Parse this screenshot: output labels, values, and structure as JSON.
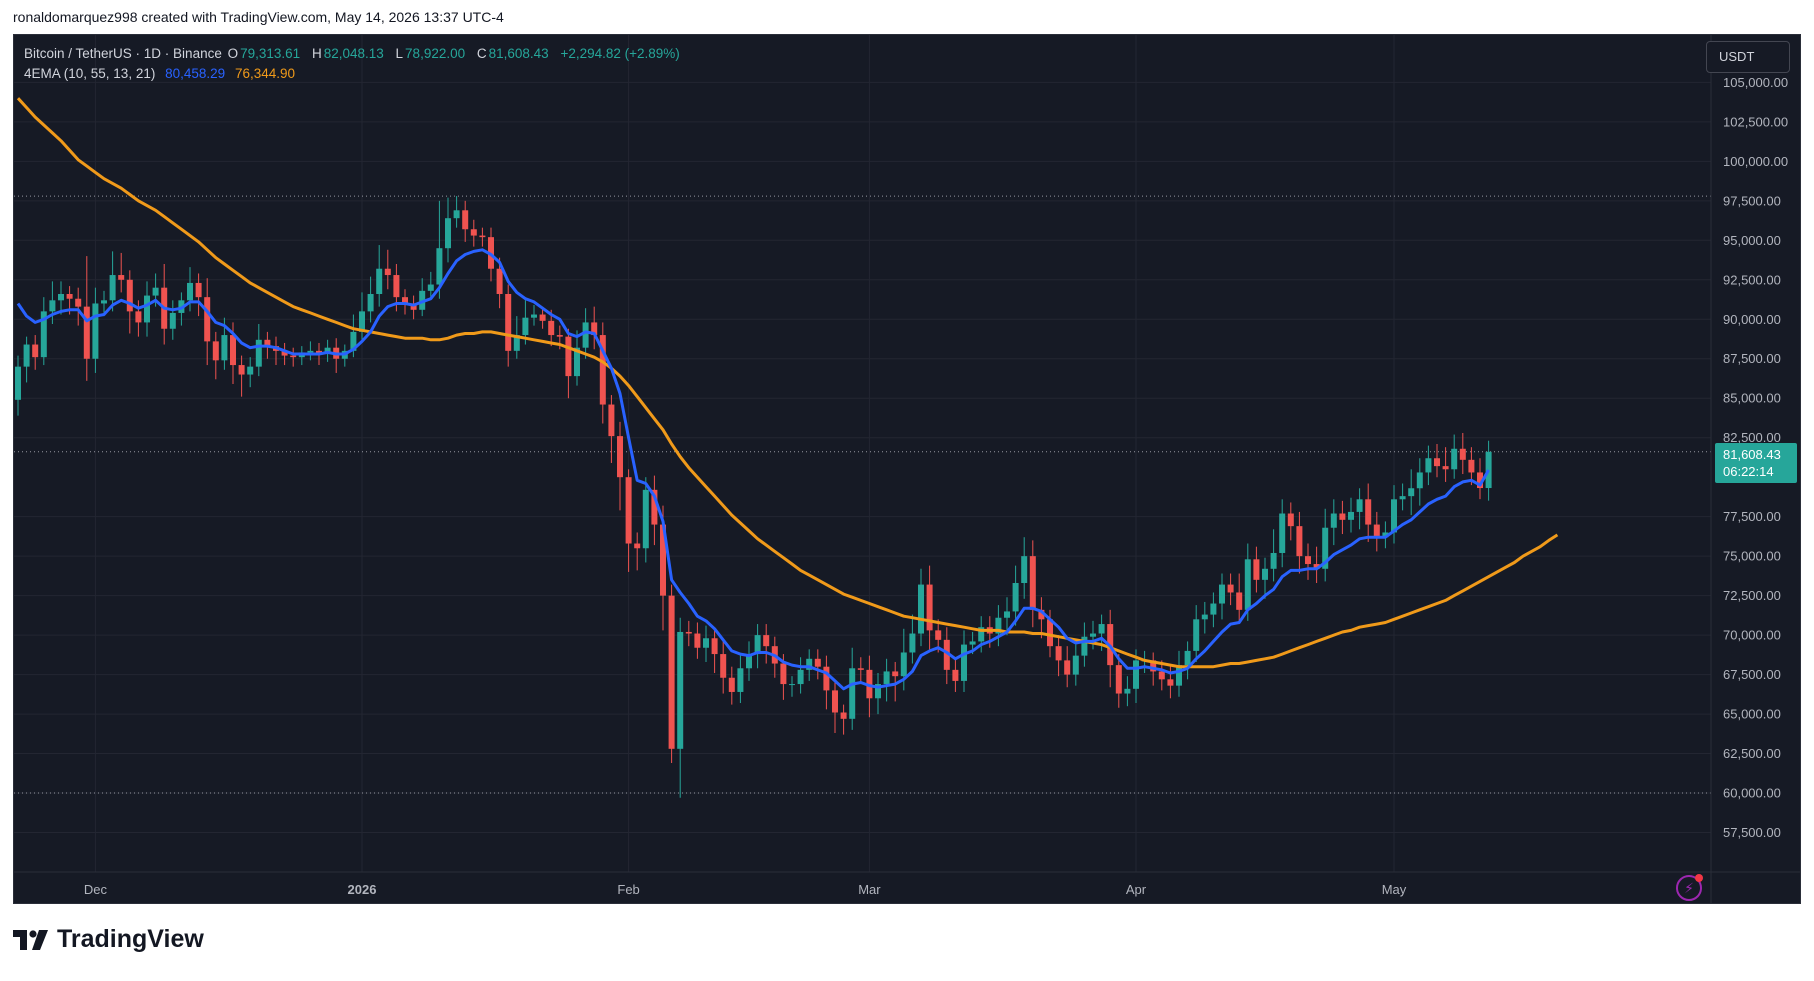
{
  "header": {
    "credit": "ronaldomarquez998 created with TradingView.com, May 14, 2026 13:37 UTC-4"
  },
  "legend": {
    "symbol": "Bitcoin / TetherUS · 1D · Binance",
    "open_label": "O",
    "open": "79,313.61",
    "high_label": "H",
    "high": "82,048.13",
    "low_label": "L",
    "low": "78,922.00",
    "close_label": "C",
    "close": "81,608.43",
    "change": "+2,294.82 (+2.89%)",
    "indicator": "4EMA (10, 55, 13, 21)",
    "ema_fast": "80,458.29",
    "ema_slow": "76,344.90"
  },
  "currency": "USDT",
  "last_price": {
    "value": "81,608.43",
    "countdown": "06:22:14"
  },
  "brand": {
    "name": "TradingView"
  },
  "colors": {
    "up": "#26a69a",
    "down": "#ef5350",
    "ema_fast": "#2962ff",
    "ema_slow": "#f09a1a",
    "background": "#161a25",
    "grid": "#232632",
    "text": "#b2b5be"
  },
  "chart_data": {
    "type": "candlestick",
    "ylim": [
      55000,
      108000
    ],
    "y_ticks": [
      "105,000.00",
      "102,500.00",
      "100,000.00",
      "97,500.00",
      "95,000.00",
      "92,500.00",
      "90,000.00",
      "87,500.00",
      "85,000.00",
      "82,500.00",
      "77,500.00",
      "75,000.00",
      "72,500.00",
      "70,000.00",
      "67,500.00",
      "65,000.00",
      "62,500.00",
      "60,000.00",
      "57,500.00"
    ],
    "y_tick_values": [
      105000,
      102500,
      100000,
      97500,
      95000,
      92500,
      90000,
      87500,
      85000,
      82500,
      77500,
      75000,
      72500,
      70000,
      67500,
      65000,
      62500,
      60000,
      57500
    ],
    "x_labels": [
      {
        "label": "Dec",
        "index": 9
      },
      {
        "label": "2026",
        "index": 40
      },
      {
        "label": "Feb",
        "index": 71
      },
      {
        "label": "Mar",
        "index": 99
      },
      {
        "label": "Apr",
        "index": 130
      },
      {
        "label": "May",
        "index": 160
      }
    ],
    "dotted_levels": [
      97800,
      81608.43,
      60000
    ],
    "close": [
      87000,
      88400,
      87600,
      90500,
      91200,
      91600,
      91300,
      90800,
      87500,
      91000,
      91200,
      92800,
      92500,
      90500,
      89800,
      91500,
      92000,
      89400,
      90400,
      91200,
      92300,
      91400,
      88600,
      87400,
      89000,
      87100,
      86500,
      87000,
      88700,
      88300,
      88000,
      87700,
      87600,
      87900,
      88000,
      87800,
      88200,
      87500,
      88000,
      89200,
      90500,
      91600,
      93200,
      92800,
      91400,
      91000,
      90600,
      91800,
      92200,
      94500,
      96400,
      96900,
      95700,
      95300,
      95200,
      93200,
      91600,
      88000,
      89000,
      90100,
      90300,
      89900,
      89000,
      88900,
      86400,
      88200,
      89800,
      89000,
      84600,
      82600,
      80000,
      75800,
      75500,
      79200,
      77000,
      72500,
      62800,
      70200,
      70100,
      69200,
      69800,
      68800,
      67300,
      66400,
      67900,
      68800,
      70000,
      69300,
      68200,
      66900,
      66900,
      67800,
      68500,
      68000,
      66500,
      65100,
      64700,
      67900,
      67800,
      66000,
      66900,
      67700,
      67400,
      68900,
      70100,
      73200,
      70300,
      69700,
      67800,
      67100,
      69400,
      69600,
      70500,
      70100,
      71100,
      71500,
      73300,
      75000,
      71600,
      71000,
      69300,
      68400,
      67500,
      68700,
      69900,
      70100,
      70700,
      68100,
      66300,
      66600,
      68400,
      68400,
      67700,
      67200,
      66800,
      68100,
      69000,
      71000,
      71300,
      72000,
      73200,
      72700,
      71600,
      74800,
      73500,
      74200,
      75200,
      77700,
      76900,
      75000,
      74500,
      74200,
      76800,
      77700,
      77300,
      77800,
      78600,
      77000,
      76200,
      76500,
      78600,
      78800,
      79300,
      80300,
      81200,
      80700,
      80500,
      81800,
      81100,
      80300,
      79313.61,
      81608.43
    ],
    "open_start": 84900,
    "high_offset": [
      700,
      500,
      600,
      900,
      1200,
      800,
      500,
      700,
      3200,
      1000,
      600,
      1500,
      1400,
      600,
      700,
      900,
      900,
      1500,
      800,
      500,
      1000,
      600,
      1200,
      600,
      1100,
      800,
      600,
      600,
      1000,
      500,
      600,
      500,
      500,
      400,
      600,
      500,
      500,
      600,
      400,
      1100,
      1200,
      1100,
      1500,
      1200,
      700,
      500,
      500,
      800,
      800,
      3000,
      1300,
      900,
      600,
      600,
      500,
      600,
      700,
      600,
      1200,
      1100,
      600,
      500,
      700,
      600,
      500,
      1100,
      900,
      1000,
      800,
      600,
      900,
      500,
      700,
      800,
      900,
      1200,
      700,
      900,
      700,
      700,
      800,
      500,
      800,
      700,
      900,
      800,
      700,
      700,
      600,
      600,
      500,
      800,
      600,
      600,
      700,
      500,
      500,
      1300,
      700,
      900,
      700,
      800,
      600,
      1500,
      1200,
      1000,
      1200,
      700,
      800,
      700,
      900,
      600,
      700,
      700,
      800,
      900,
      1100,
      1200,
      1000,
      800,
      600,
      700,
      900,
      700,
      900,
      800,
      600,
      900,
      700,
      800,
      700,
      600,
      500,
      700,
      900,
      900,
      600,
      900,
      800,
      700,
      700,
      700,
      1200,
      1000,
      800,
      700,
      1500,
      900,
      700,
      900,
      800,
      1100,
      1200,
      900,
      800,
      900,
      700,
      1000,
      800,
      700,
      900,
      800,
      1200,
      900,
      800,
      900,
      1200,
      900,
      1000,
      800,
      900,
      700,
      1100,
      500
    ],
    "low_offset": [
      1000,
      1000,
      800,
      500,
      800,
      900,
      1000,
      1200,
      1400,
      900,
      800,
      700,
      800,
      1400,
      900,
      900,
      700,
      1000,
      700,
      800,
      700,
      1200,
      1500,
      1200,
      600,
      1200,
      1400,
      800,
      600,
      800,
      900,
      600,
      600,
      500,
      500,
      700,
      500,
      900,
      500,
      400,
      500,
      700,
      800,
      900,
      900,
      700,
      600,
      400,
      500,
      900,
      900,
      600,
      800,
      700,
      600,
      800,
      900,
      1000,
      500,
      600,
      500,
      500,
      700,
      800,
      1400,
      600,
      700,
      900,
      1200,
      1700,
      2100,
      1800,
      1400,
      900,
      1300,
      2200,
      900,
      3100,
      800,
      700,
      900,
      1200,
      1000,
      800,
      700,
      800,
      900,
      1100,
      900,
      1000,
      800,
      600,
      700,
      800,
      1200,
      1300,
      1000,
      700,
      900,
      1200,
      1000,
      1100,
      1600,
      900,
      700,
      800,
      1300,
      800,
      900,
      700,
      700,
      600,
      700,
      900,
      800,
      1100,
      900,
      1000,
      1100,
      1200,
      700,
      1000,
      800,
      700,
      700,
      800,
      1100,
      1400,
      900,
      800,
      900,
      800,
      900,
      700,
      800,
      700,
      900,
      700,
      900,
      800,
      1000,
      800,
      900,
      700,
      800,
      1200,
      800,
      900,
      900,
      1100,
      1000,
      900,
      800,
      1100,
      900,
      800,
      1100,
      1100,
      900,
      700,
      700,
      700,
      1200,
      1100,
      800,
      700,
      800,
      600,
      900,
      800,
      700,
      800,
      900,
      1200,
      800,
      600,
      400
    ],
    "ema_fast_series": [
      91000,
      90200,
      89800,
      90000,
      90300,
      90500,
      90600,
      90600,
      89900,
      90200,
      90300,
      90900,
      91200,
      91000,
      90700,
      90900,
      91200,
      90700,
      90600,
      90700,
      91100,
      91100,
      90500,
      89800,
      89600,
      89100,
      88500,
      88200,
      88300,
      88300,
      88200,
      88000,
      87800,
      87800,
      87800,
      87800,
      87900,
      87800,
      87800,
      88100,
      88600,
      89200,
      90200,
      90800,
      91000,
      91000,
      90900,
      91100,
      91300,
      92000,
      92900,
      93700,
      94100,
      94300,
      94400,
      94100,
      93600,
      92400,
      91700,
      91300,
      91100,
      90700,
      90300,
      90000,
      89100,
      88900,
      89200,
      89100,
      88000,
      86900,
      85300,
      82500,
      79800,
      79600,
      78800,
      77200,
      73500,
      72700,
      72000,
      71200,
      70900,
      70400,
      69700,
      69000,
      68800,
      68700,
      68900,
      68900,
      68700,
      68300,
      68100,
      68000,
      68000,
      67800,
      67600,
      67100,
      66600,
      66900,
      67000,
      66800,
      66700,
      66800,
      66900,
      67200,
      67700,
      68700,
      69000,
      69200,
      68900,
      68500,
      68800,
      69000,
      69400,
      69600,
      69900,
      70200,
      70900,
      71700,
      71700,
      71500,
      71000,
      70500,
      69800,
      69500,
      69600,
      69600,
      69800,
      69300,
      68500,
      67900,
      67900,
      68000,
      67900,
      67800,
      67600,
      67700,
      67900,
      68500,
      69000,
      69600,
      70200,
      70700,
      70800,
      71600,
      72000,
      72500,
      72900,
      73700,
      74100,
      74100,
      74200,
      74200,
      74600,
      75100,
      75400,
      75700,
      76100,
      76200,
      76200,
      76200,
      76600,
      77000,
      77300,
      77800,
      78300,
      78600,
      78800,
      79400,
      79700,
      79800,
      79500,
      80458.29
    ],
    "ema_slow_series": [
      104000,
      103400,
      102800,
      102300,
      101800,
      101300,
      100700,
      100100,
      99700,
      99300,
      98900,
      98600,
      98300,
      97900,
      97500,
      97200,
      96900,
      96500,
      96100,
      95700,
      95300,
      94900,
      94400,
      93900,
      93500,
      93100,
      92700,
      92300,
      92000,
      91700,
      91400,
      91100,
      90800,
      90600,
      90400,
      90200,
      90000,
      89800,
      89600,
      89400,
      89300,
      89200,
      89100,
      89000,
      88900,
      88800,
      88800,
      88800,
      88700,
      88700,
      88800,
      89000,
      89100,
      89100,
      89200,
      89200,
      89100,
      89000,
      88900,
      88800,
      88700,
      88600,
      88500,
      88400,
      88200,
      88000,
      87800,
      87600,
      87300,
      86900,
      86400,
      85800,
      85100,
      84400,
      83700,
      83000,
      82100,
      81300,
      80600,
      80000,
      79400,
      78800,
      78200,
      77600,
      77100,
      76600,
      76100,
      75700,
      75300,
      74900,
      74500,
      74100,
      73800,
      73500,
      73200,
      72900,
      72600,
      72400,
      72200,
      72000,
      71800,
      71600,
      71400,
      71200,
      71100,
      71000,
      70900,
      70800,
      70700,
      70600,
      70500,
      70400,
      70300,
      70300,
      70300,
      70200,
      70200,
      70200,
      70100,
      70100,
      70000,
      69900,
      69800,
      69700,
      69600,
      69500,
      69400,
      69200,
      69000,
      68800,
      68600,
      68400,
      68300,
      68200,
      68100,
      68000,
      68000,
      68000,
      68000,
      68000,
      68100,
      68200,
      68200,
      68300,
      68400,
      68500,
      68600,
      68800,
      69000,
      69200,
      69400,
      69600,
      69800,
      70000,
      70200,
      70300,
      70500,
      70600,
      70700,
      70800,
      71000,
      71200,
      71400,
      71600,
      71800,
      72000,
      72200,
      72500,
      72800,
      73100,
      73400,
      73700,
      74000,
      74300,
      74600,
      75000,
      75300,
      75600,
      76000,
      76344.9
    ]
  }
}
